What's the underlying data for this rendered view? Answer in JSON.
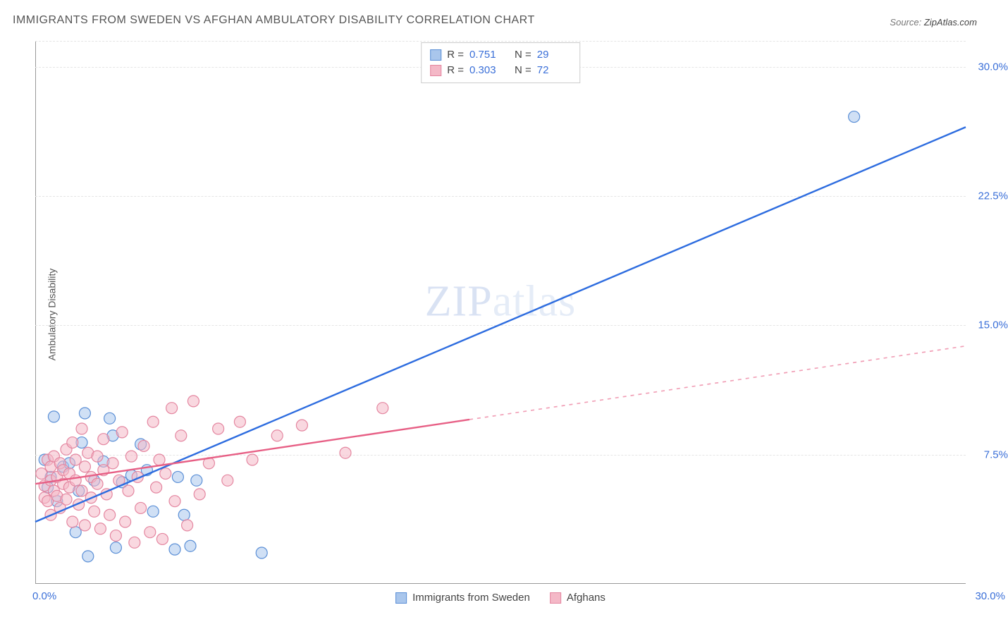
{
  "title": "IMMIGRANTS FROM SWEDEN VS AFGHAN AMBULATORY DISABILITY CORRELATION CHART",
  "source_label": "Source:",
  "source_value": "ZipAtlas.com",
  "ylabel": "Ambulatory Disability",
  "watermark": {
    "bold": "ZIP",
    "light": "atlas"
  },
  "chart": {
    "type": "scatter",
    "background_color": "#ffffff",
    "grid_color": "#e5e5e5",
    "axis_color": "#999999",
    "tick_color": "#3a6fd8",
    "xlim": [
      0,
      30
    ],
    "ylim": [
      0,
      31.5
    ],
    "y_major_ticks": [
      7.5,
      15.0,
      22.5,
      30.0
    ],
    "y_tick_labels": [
      "7.5%",
      "15.0%",
      "22.5%",
      "30.0%"
    ],
    "x_tick_left": "0.0%",
    "x_tick_right": "30.0%",
    "marker_radius": 8,
    "marker_opacity": 0.55,
    "line_width": 2.4,
    "series": [
      {
        "key": "sweden",
        "legend_label": "Immigrants from Sweden",
        "fill": "#a9c6ec",
        "stroke": "#5b8fd6",
        "line_color": "#2d6cdf",
        "R": "0.751",
        "N": "29",
        "regression": {
          "x1": 0.0,
          "y1": 3.6,
          "x2": 30.0,
          "y2": 26.5,
          "solid_until_x": 30.0
        },
        "points": [
          [
            0.3,
            7.2
          ],
          [
            0.4,
            5.6
          ],
          [
            0.5,
            6.2
          ],
          [
            0.6,
            9.7
          ],
          [
            0.7,
            4.8
          ],
          [
            0.9,
            6.8
          ],
          [
            1.1,
            7.0
          ],
          [
            1.3,
            3.0
          ],
          [
            1.4,
            5.4
          ],
          [
            1.5,
            8.2
          ],
          [
            1.6,
            9.9
          ],
          [
            1.7,
            1.6
          ],
          [
            1.9,
            6.0
          ],
          [
            2.2,
            7.1
          ],
          [
            2.4,
            9.6
          ],
          [
            2.5,
            8.6
          ],
          [
            2.6,
            2.1
          ],
          [
            2.8,
            5.9
          ],
          [
            3.1,
            6.3
          ],
          [
            3.4,
            8.1
          ],
          [
            3.6,
            6.6
          ],
          [
            3.8,
            4.2
          ],
          [
            4.5,
            2.0
          ],
          [
            4.6,
            6.2
          ],
          [
            4.8,
            4.0
          ],
          [
            5.0,
            2.2
          ],
          [
            5.2,
            6.0
          ],
          [
            7.3,
            1.8
          ],
          [
            26.4,
            27.1
          ]
        ]
      },
      {
        "key": "afghans",
        "legend_label": "Afghans",
        "fill": "#f4b8c7",
        "stroke": "#e486a0",
        "line_color": "#e75f85",
        "R": "0.303",
        "N": "72",
        "regression": {
          "x1": 0.0,
          "y1": 5.8,
          "x2": 30.0,
          "y2": 13.8,
          "solid_until_x": 14.0
        },
        "points": [
          [
            0.2,
            6.4
          ],
          [
            0.3,
            5.7
          ],
          [
            0.3,
            5.0
          ],
          [
            0.4,
            7.2
          ],
          [
            0.4,
            4.8
          ],
          [
            0.5,
            6.0
          ],
          [
            0.5,
            6.8
          ],
          [
            0.5,
            4.0
          ],
          [
            0.6,
            5.4
          ],
          [
            0.6,
            7.4
          ],
          [
            0.7,
            6.2
          ],
          [
            0.7,
            5.1
          ],
          [
            0.8,
            7.0
          ],
          [
            0.8,
            4.4
          ],
          [
            0.9,
            6.6
          ],
          [
            0.9,
            5.8
          ],
          [
            1.0,
            7.8
          ],
          [
            1.0,
            4.9
          ],
          [
            1.1,
            5.6
          ],
          [
            1.1,
            6.4
          ],
          [
            1.2,
            8.2
          ],
          [
            1.2,
            3.6
          ],
          [
            1.3,
            6.0
          ],
          [
            1.3,
            7.2
          ],
          [
            1.4,
            4.6
          ],
          [
            1.5,
            9.0
          ],
          [
            1.5,
            5.4
          ],
          [
            1.6,
            6.8
          ],
          [
            1.6,
            3.4
          ],
          [
            1.7,
            7.6
          ],
          [
            1.8,
            5.0
          ],
          [
            1.8,
            6.2
          ],
          [
            1.9,
            4.2
          ],
          [
            2.0,
            7.4
          ],
          [
            2.0,
            5.8
          ],
          [
            2.1,
            3.2
          ],
          [
            2.2,
            6.6
          ],
          [
            2.2,
            8.4
          ],
          [
            2.3,
            5.2
          ],
          [
            2.4,
            4.0
          ],
          [
            2.5,
            7.0
          ],
          [
            2.6,
            2.8
          ],
          [
            2.7,
            6.0
          ],
          [
            2.8,
            8.8
          ],
          [
            2.9,
            3.6
          ],
          [
            3.0,
            5.4
          ],
          [
            3.1,
            7.4
          ],
          [
            3.2,
            2.4
          ],
          [
            3.3,
            6.2
          ],
          [
            3.4,
            4.4
          ],
          [
            3.5,
            8.0
          ],
          [
            3.7,
            3.0
          ],
          [
            3.8,
            9.4
          ],
          [
            3.9,
            5.6
          ],
          [
            4.0,
            7.2
          ],
          [
            4.1,
            2.6
          ],
          [
            4.2,
            6.4
          ],
          [
            4.4,
            10.2
          ],
          [
            4.5,
            4.8
          ],
          [
            4.7,
            8.6
          ],
          [
            4.9,
            3.4
          ],
          [
            5.1,
            10.6
          ],
          [
            5.3,
            5.2
          ],
          [
            5.6,
            7.0
          ],
          [
            5.9,
            9.0
          ],
          [
            6.2,
            6.0
          ],
          [
            6.6,
            9.4
          ],
          [
            7.0,
            7.2
          ],
          [
            7.8,
            8.6
          ],
          [
            8.6,
            9.2
          ],
          [
            10.0,
            7.6
          ],
          [
            11.2,
            10.2
          ]
        ]
      }
    ],
    "legend_bottom": [
      {
        "series": "sweden"
      },
      {
        "series": "afghans"
      }
    ],
    "legend_top_rows": [
      {
        "series": "sweden"
      },
      {
        "series": "afghans"
      }
    ]
  }
}
